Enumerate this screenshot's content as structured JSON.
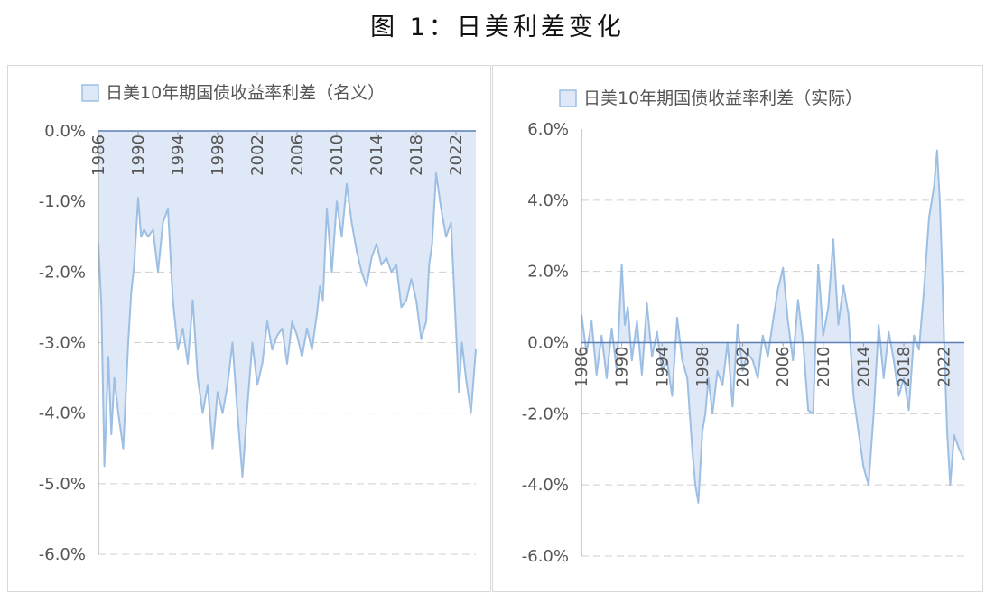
{
  "figure_title": "图 1：日美利差变化",
  "chart_data": [
    {
      "type": "area",
      "legend": "日美10年期国债收益率利差（名义）",
      "legend_position": "top",
      "ylim": [
        -6.0,
        0.0
      ],
      "yticks": [
        "0.0%",
        "-1.0%",
        "-2.0%",
        "-3.0%",
        "-4.0%",
        "-5.0%",
        "-6.0%"
      ],
      "xlim": [
        1986,
        2024
      ],
      "xticks": [
        "1986",
        "1990",
        "1994",
        "1998",
        "2002",
        "2006",
        "2010",
        "2014",
        "2018",
        "2022"
      ],
      "grid": "horizontal dashed",
      "color": "#9dbfe3",
      "fill": "#dfe8f6",
      "x": [
        1986.0,
        1986.3,
        1986.6,
        1987.0,
        1987.3,
        1987.6,
        1988.0,
        1988.5,
        1989.0,
        1989.3,
        1989.6,
        1990.0,
        1990.3,
        1990.6,
        1991.0,
        1991.5,
        1992.0,
        1992.5,
        1993.0,
        1993.5,
        1994.0,
        1994.5,
        1995.0,
        1995.5,
        1996.0,
        1996.5,
        1997.0,
        1997.5,
        1998.0,
        1998.5,
        1999.0,
        1999.5,
        2000.0,
        2000.5,
        2001.0,
        2001.5,
        2002.0,
        2002.5,
        2003.0,
        2003.5,
        2004.0,
        2004.5,
        2005.0,
        2005.5,
        2006.0,
        2006.5,
        2007.0,
        2007.5,
        2008.0,
        2008.3,
        2008.6,
        2009.0,
        2009.5,
        2010.0,
        2010.5,
        2011.0,
        2011.5,
        2012.0,
        2012.5,
        2013.0,
        2013.5,
        2014.0,
        2014.5,
        2015.0,
        2015.5,
        2016.0,
        2016.5,
        2017.0,
        2017.5,
        2018.0,
        2018.5,
        2019.0,
        2019.3,
        2019.6,
        2020.0,
        2020.5,
        2021.0,
        2021.5,
        2022.0,
        2022.3,
        2022.6,
        2023.0,
        2023.5,
        2024.0
      ],
      "y": [
        -1.6,
        -2.5,
        -4.75,
        -3.2,
        -4.3,
        -3.5,
        -4.0,
        -4.5,
        -3.0,
        -2.3,
        -1.9,
        -0.95,
        -1.5,
        -1.4,
        -1.5,
        -1.4,
        -2.0,
        -1.3,
        -1.1,
        -2.4,
        -3.1,
        -2.8,
        -3.3,
        -2.4,
        -3.5,
        -4.0,
        -3.6,
        -4.5,
        -3.7,
        -4.0,
        -3.6,
        -3.0,
        -4.0,
        -4.9,
        -3.9,
        -3.0,
        -3.6,
        -3.3,
        -2.7,
        -3.1,
        -2.9,
        -2.8,
        -3.3,
        -2.7,
        -2.9,
        -3.2,
        -2.8,
        -3.1,
        -2.6,
        -2.2,
        -2.4,
        -1.1,
        -2.0,
        -1.0,
        -1.5,
        -0.75,
        -1.3,
        -1.7,
        -2.0,
        -2.2,
        -1.8,
        -1.6,
        -1.9,
        -1.8,
        -2.0,
        -1.9,
        -2.5,
        -2.4,
        -2.1,
        -2.4,
        -2.95,
        -2.7,
        -1.9,
        -1.6,
        -0.6,
        -1.1,
        -1.5,
        -1.3,
        -2.8,
        -3.7,
        -3.0,
        -3.5,
        -4.0,
        -3.1
      ]
    },
    {
      "type": "area",
      "legend": "日美10年期国债收益率利差（实际）",
      "legend_position": "top",
      "ylim": [
        -6.0,
        6.0
      ],
      "yticks": [
        "6.0%",
        "4.0%",
        "2.0%",
        "0.0%",
        "-2.0%",
        "-4.0%",
        "-6.0%"
      ],
      "xlim": [
        1986,
        2024
      ],
      "xticks": [
        "1986",
        "1990",
        "1994",
        "1998",
        "2002",
        "2006",
        "2010",
        "2014",
        "2018",
        "2022"
      ],
      "grid": "horizontal dashed",
      "color": "#9dbfe3",
      "fill": "#dfe8f6",
      "x": [
        1986.0,
        1986.5,
        1987.0,
        1987.5,
        1988.0,
        1988.5,
        1989.0,
        1989.5,
        1990.0,
        1990.3,
        1990.6,
        1991.0,
        1991.5,
        1992.0,
        1992.5,
        1993.0,
        1993.5,
        1994.0,
        1994.5,
        1995.0,
        1995.5,
        1996.0,
        1996.5,
        1997.0,
        1997.3,
        1997.6,
        1998.0,
        1998.3,
        1998.6,
        1999.0,
        1999.5,
        2000.0,
        2000.5,
        2001.0,
        2001.5,
        2002.0,
        2002.5,
        2003.0,
        2003.5,
        2004.0,
        2004.5,
        2005.0,
        2005.5,
        2006.0,
        2006.5,
        2007.0,
        2007.5,
        2008.0,
        2008.5,
        2009.0,
        2009.5,
        2010.0,
        2010.5,
        2011.0,
        2011.5,
        2012.0,
        2012.5,
        2013.0,
        2013.5,
        2014.0,
        2014.5,
        2015.0,
        2015.5,
        2016.0,
        2016.5,
        2017.0,
        2017.5,
        2018.0,
        2018.5,
        2019.0,
        2019.5,
        2020.0,
        2020.5,
        2021.0,
        2021.3,
        2021.6,
        2021.8,
        2022.0,
        2022.3,
        2022.6,
        2023.0,
        2023.5,
        2024.0
      ],
      "y": [
        0.8,
        -0.3,
        0.6,
        -0.9,
        0.2,
        -1.0,
        0.4,
        -0.8,
        2.2,
        0.5,
        1.0,
        -0.5,
        0.6,
        -0.9,
        1.1,
        -0.4,
        0.3,
        -0.8,
        -0.5,
        -1.5,
        0.7,
        -0.5,
        -1.0,
        -3.0,
        -4.0,
        -4.5,
        -2.5,
        -2.0,
        -1.0,
        -2.0,
        -0.8,
        -1.2,
        0.0,
        -1.8,
        0.5,
        -0.8,
        -0.3,
        -0.5,
        -1.0,
        0.2,
        -0.4,
        0.6,
        1.5,
        2.1,
        0.6,
        -0.5,
        1.2,
        0.0,
        -1.9,
        -2.0,
        2.2,
        0.2,
        1.0,
        2.9,
        0.5,
        1.6,
        0.8,
        -1.5,
        -2.5,
        -3.5,
        -4.0,
        -2.0,
        0.5,
        -1.0,
        0.3,
        -0.5,
        -1.5,
        -1.0,
        -1.9,
        0.2,
        -0.2,
        1.5,
        3.5,
        4.4,
        5.4,
        3.8,
        2.0,
        0.0,
        -2.5,
        -4.0,
        -2.6,
        -3.0,
        -3.3
      ]
    }
  ]
}
